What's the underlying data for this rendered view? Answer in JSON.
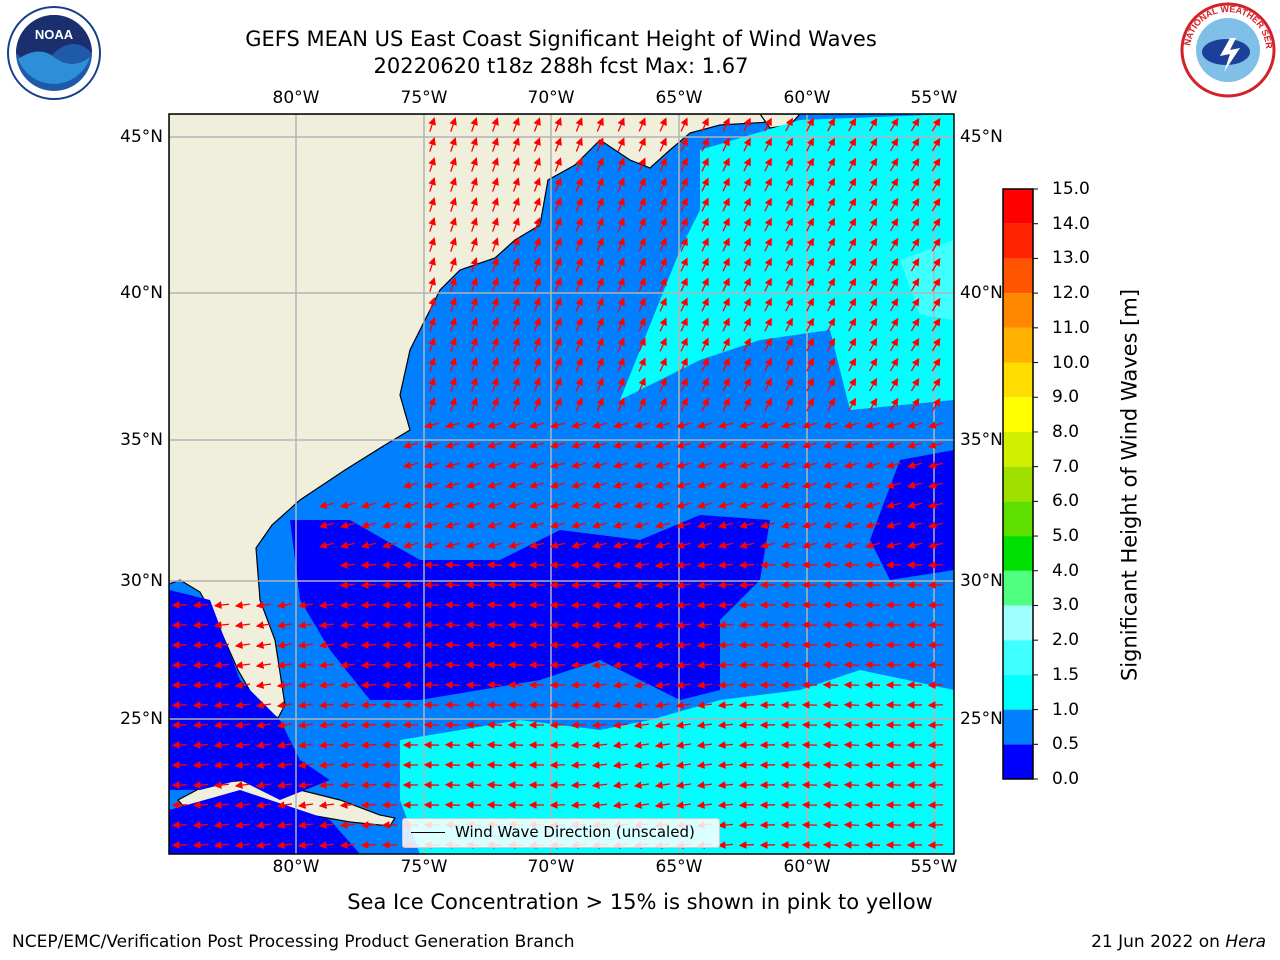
{
  "title_line1": "GEFS MEAN US East Coast Significant Height of Wind Waves",
  "title_line2": "20220620 t18z 288h fcst   Max: 1.67",
  "logos": {
    "left": {
      "icon": "noaa-logo",
      "text": "NOAA"
    },
    "right": {
      "icon": "nws-logo",
      "text": "NATIONAL WEATHER SERVICE"
    }
  },
  "lon_labels": [
    "80°W",
    "75°W",
    "70°W",
    "65°W",
    "60°W",
    "55°W"
  ],
  "lat_labels": [
    "45°N",
    "40°N",
    "35°N",
    "30°N",
    "25°N"
  ],
  "legend": {
    "label": "Wind Wave Direction (unscaled)"
  },
  "colorbar": {
    "label": "Significant Height of Wind Waves [m]",
    "ticks": [
      "0.0",
      "0.5",
      "1.0",
      "1.5",
      "2.0",
      "3.0",
      "4.0",
      "5.0",
      "6.0",
      "7.0",
      "8.0",
      "9.0",
      "10.0",
      "11.0",
      "12.0",
      "13.0",
      "14.0",
      "15.0"
    ],
    "colors": [
      "#0000ff",
      "#0080ff",
      "#00ffff",
      "#40ffff",
      "#a0ffff",
      "#50ff80",
      "#00e000",
      "#60e000",
      "#a0e000",
      "#d0f000",
      "#ffff00",
      "#ffdd00",
      "#ffb000",
      "#ff8800",
      "#ff5500",
      "#ff2200",
      "#ff0000"
    ]
  },
  "colors": {
    "land": "#efefdc",
    "arrow": "#ff0000",
    "grid": "#b3b3b3"
  },
  "footnote": "Sea Ice Concentration > 15% is shown in pink to yellow",
  "footer_left": "NCEP/EMC/Verification Post Processing Product Generation Branch",
  "footer_right": {
    "date": "21 Jun 2022 on ",
    "host": "Hera"
  }
}
